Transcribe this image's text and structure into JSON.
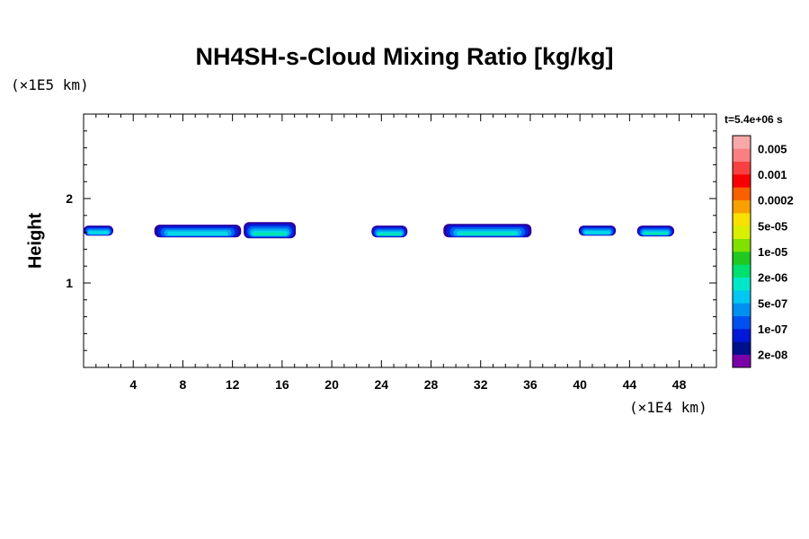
{
  "chart_data": {
    "type": "heatmap",
    "title": "NH4SH-s-Cloud Mixing Ratio [kg/kg]",
    "ylabel": "Height",
    "y_unit_label": "(×1E5 km)",
    "x_unit_label": "(×1E4 km)",
    "time_label": "t=5.4e+06 s",
    "xlim": [
      0,
      51
    ],
    "ylim": [
      0,
      3
    ],
    "x_ticks": [
      4,
      8,
      12,
      16,
      20,
      24,
      28,
      32,
      36,
      40,
      44,
      48
    ],
    "y_ticks": [
      1,
      2
    ],
    "colorbar": {
      "scale": "log",
      "labels": [
        "0.005",
        "0.001",
        "0.0002",
        "5e-05",
        "1e-05",
        "2e-06",
        "5e-07",
        "1e-07",
        "2e-08"
      ],
      "colors": [
        "#7a00a8",
        "#00108c",
        "#0018d8",
        "#0050f0",
        "#0090f0",
        "#00c8f0",
        "#00e8c8",
        "#00e070",
        "#20c820",
        "#80e000",
        "#d8f000",
        "#f8e000",
        "#f8a000",
        "#f86000",
        "#f80000",
        "#f84040",
        "#f88080",
        "#f8a8a8"
      ]
    },
    "cloud_bands": [
      {
        "x_start": 0,
        "x_end": 2.4,
        "y_low": 1.56,
        "y_high": 1.68,
        "min": "2e-08",
        "max": "5e-07"
      },
      {
        "x_start": 5.7,
        "x_end": 12.7,
        "y_low": 1.54,
        "y_high": 1.69,
        "min": "2e-08",
        "max": "5e-07"
      },
      {
        "x_start": 12.9,
        "x_end": 17.1,
        "y_low": 1.53,
        "y_high": 1.72,
        "min": "2e-08",
        "max": "2e-06"
      },
      {
        "x_start": 23.2,
        "x_end": 26.1,
        "y_low": 1.54,
        "y_high": 1.68,
        "min": "2e-08",
        "max": "2e-06"
      },
      {
        "x_start": 29.0,
        "x_end": 36.1,
        "y_low": 1.54,
        "y_high": 1.7,
        "min": "2e-08",
        "max": "2e-06"
      },
      {
        "x_start": 39.9,
        "x_end": 42.9,
        "y_low": 1.56,
        "y_high": 1.68,
        "min": "2e-08",
        "max": "5e-07"
      },
      {
        "x_start": 44.6,
        "x_end": 47.6,
        "y_low": 1.55,
        "y_high": 1.68,
        "min": "2e-08",
        "max": "2e-06"
      }
    ]
  }
}
